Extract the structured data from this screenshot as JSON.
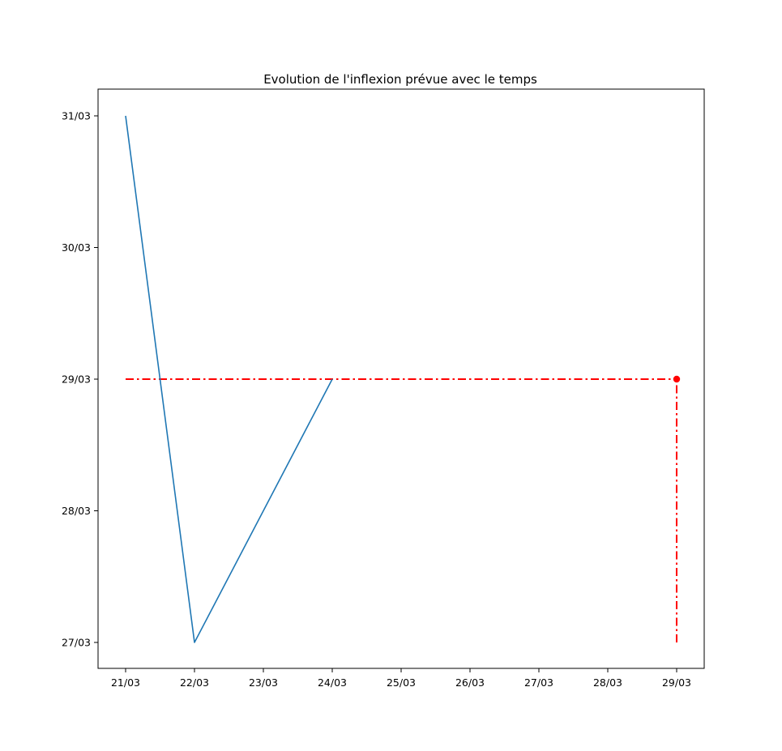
{
  "chart_data": {
    "type": "line",
    "title": "Evolution de l'inflexion prévue avec le temps",
    "xlabel": "",
    "ylabel": "",
    "x_tick_labels": [
      "21/03",
      "22/03",
      "23/03",
      "24/03",
      "25/03",
      "26/03",
      "27/03",
      "28/03",
      "29/03"
    ],
    "y_tick_labels": [
      "27/03",
      "28/03",
      "29/03",
      "30/03",
      "31/03"
    ],
    "x_range": [
      "21/03",
      "29/03"
    ],
    "y_range": [
      "27/03",
      "31/03"
    ],
    "grid": false,
    "series": [
      {
        "style": "solid",
        "color": "#1f77b4",
        "points": [
          {
            "x": "21/03",
            "y": "31/03"
          },
          {
            "x": "22/03",
            "y": "27/03"
          },
          {
            "x": "24/03",
            "y": "29/03"
          }
        ]
      }
    ],
    "reference_lines": [
      {
        "orientation": "horizontal",
        "style": "dashdot",
        "color": "#ff0000",
        "y": "29/03",
        "x_from": "21/03",
        "x_to": "29/03"
      },
      {
        "orientation": "vertical",
        "style": "dashdot",
        "color": "#ff0000",
        "x": "29/03",
        "y_from": "27/03",
        "y_to": "29/03"
      }
    ],
    "markers": [
      {
        "x": "29/03",
        "y": "29/03",
        "color": "#ff0000",
        "shape": "circle"
      }
    ]
  }
}
